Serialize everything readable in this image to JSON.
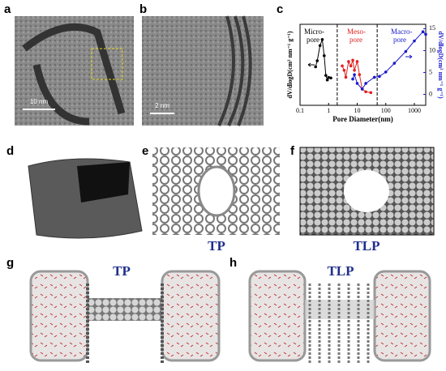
{
  "panels": {
    "a": {
      "label": "a",
      "scale_bar": "10 nm"
    },
    "b": {
      "label": "b",
      "scale_bar": "2 nm"
    },
    "c": {
      "label": "c"
    },
    "d": {
      "label": "d"
    },
    "e": {
      "label": "e",
      "caption": "TP"
    },
    "f": {
      "label": "f",
      "caption": "TLP"
    },
    "g": {
      "label": "g",
      "caption": "TP"
    },
    "h": {
      "label": "h",
      "caption": "TLP"
    }
  },
  "chart_data": {
    "type": "scatter",
    "x_label": "Pore Diameter(nm)",
    "y_label": "dV/dlogD(cm³ nm⁻¹ g⁻¹)",
    "y2_label": "dV/dlogD(cm³ nm⁻¹ g⁻¹)",
    "annotations": [
      {
        "text": "Micro-",
        "text2": "pore",
        "color": "#000000"
      },
      {
        "text": "Meso-",
        "text2": "pore",
        "color": "#e02020"
      },
      {
        "text": "Macro-",
        "text2": "pore",
        "color": "#1a1acc"
      }
    ],
    "boundaries": [
      2,
      50
    ],
    "log_x": true,
    "xlim": [
      0.1,
      2500
    ],
    "xticks": [
      0.1,
      1,
      10,
      100,
      1000
    ],
    "ylim": [
      0,
      1.6
    ],
    "y2lim": [
      -2.5,
      16
    ],
    "y2ticks": [
      0,
      5,
      10,
      15
    ],
    "series": [
      {
        "color": "#000000",
        "axis": "y",
        "x": [
          0.35,
          0.4,
          0.5,
          0.6,
          0.7,
          0.8,
          0.9,
          1.0,
          1.2
        ],
        "values": [
          0.76,
          0.88,
          1.18,
          1.3,
          0.98,
          0.59,
          0.5,
          0.55,
          0.54
        ]
      },
      {
        "color": "#e02020",
        "axis": "y2",
        "x": [
          3,
          3.5,
          4,
          5,
          6,
          7,
          8,
          10,
          12,
          15,
          20,
          30
        ],
        "values": [
          6.5,
          5.5,
          3.9,
          7.5,
          6.5,
          7.8,
          5.5,
          7.5,
          4.5,
          1.2,
          0.6,
          0.4
        ]
      },
      {
        "color": "#1a1acc",
        "axis": "y2",
        "x": [
          7,
          8,
          10,
          15,
          20,
          40,
          60,
          100,
          200,
          500,
          1000,
          2000,
          2500
        ],
        "values": [
          3.5,
          4.5,
          2.5,
          1.2,
          2.5,
          3.9,
          4.1,
          5.1,
          7.1,
          9.8,
          12.2,
          14.3,
          13.7
        ]
      }
    ]
  }
}
